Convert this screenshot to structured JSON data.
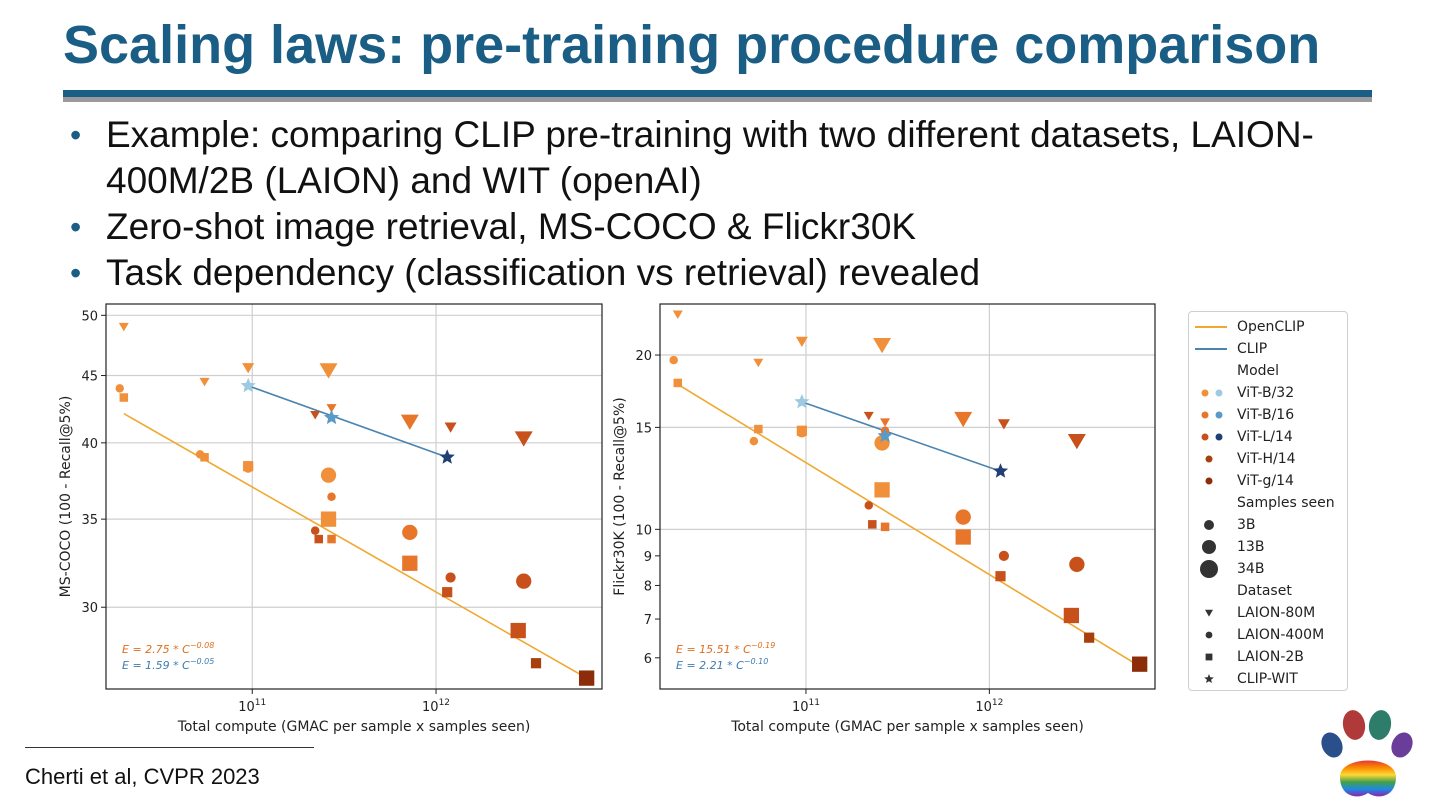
{
  "slide": {
    "title": "Scaling laws: pre-training procedure comparison",
    "bullets": [
      "Example: comparing CLIP pre-training with two different datasets, LAION-400M/2B (LAION) and WIT (openAI)",
      "Zero-shot image retrieval, MS-COCO & Flickr30K",
      "Task dependency (classification vs retrieval) revealed"
    ],
    "citation": "Cherti et al, CVPR 2023",
    "colors": {
      "title": "#1a5e85",
      "opencip_line": "#f0a830",
      "clip_line": "#4a84b0"
    }
  },
  "legend": {
    "items": [
      {
        "label": "OpenCLIP",
        "kind": "line",
        "color": "#f0a830"
      },
      {
        "label": "CLIP",
        "kind": "line",
        "color": "#4a84b0"
      },
      {
        "label": "Model",
        "kind": "header"
      },
      {
        "label": "ViT-B/32",
        "kind": "pair",
        "colors": [
          "#f0903a",
          "#9ecae1"
        ]
      },
      {
        "label": "ViT-B/16",
        "kind": "pair",
        "colors": [
          "#e8762a",
          "#5a9ac8"
        ]
      },
      {
        "label": "ViT-L/14",
        "kind": "pair",
        "colors": [
          "#c8501a",
          "#1f3f75"
        ]
      },
      {
        "label": "ViT-H/14",
        "kind": "dot",
        "color": "#a8400e"
      },
      {
        "label": "ViT-g/14",
        "kind": "dot",
        "color": "#8c2d0a"
      },
      {
        "label": "Samples seen",
        "kind": "header"
      },
      {
        "label": "3B",
        "kind": "size",
        "size": "small"
      },
      {
        "label": "13B",
        "kind": "size",
        "size": "medium"
      },
      {
        "label": "34B",
        "kind": "size",
        "size": "large"
      },
      {
        "label": "Dataset",
        "kind": "header"
      },
      {
        "label": "LAION-80M",
        "kind": "marker",
        "marker": "triangle-down"
      },
      {
        "label": "LAION-400M",
        "kind": "marker",
        "marker": "circle"
      },
      {
        "label": "LAION-2B",
        "kind": "marker",
        "marker": "square"
      },
      {
        "label": "CLIP-WIT",
        "kind": "marker",
        "marker": "star"
      }
    ]
  },
  "chart_data": [
    {
      "type": "scatter",
      "xlabel": "Total compute (GMAC per sample x samples seen)",
      "ylabel": "MS-COCO (100 - Recall@5%)",
      "xscale": "log",
      "yscale": "log",
      "xlim": [
        16000000000.0,
        8000000000000.0
      ],
      "ylim": [
        26.0,
        51.0
      ],
      "x_ticks": [
        {
          "v": 100000000000.0,
          "base": "10",
          "exp": "11"
        },
        {
          "v": 1000000000000.0,
          "base": "10",
          "exp": "12"
        }
      ],
      "y_ticks": [
        30,
        35,
        40,
        45,
        50
      ],
      "annotations": [
        {
          "prefix": "E = 2.75 * C",
          "exp": "−0.08",
          "color": "#e0701c"
        },
        {
          "prefix": "E = 1.59 * C",
          "exp": "−0.05",
          "color": "#3f7cb0"
        }
      ],
      "fit_lines": [
        {
          "name": "OpenCLIP",
          "color": "#f0a830",
          "x": [
            20000000000.0,
            6600000000000.0
          ],
          "y": [
            42.1,
            26.5
          ]
        },
        {
          "name": "CLIP",
          "color": "#4a84b0",
          "x": [
            95000000000.0,
            1150000000000.0
          ],
          "y": [
            44.2,
            39.0
          ]
        }
      ],
      "points": [
        {
          "x": 20000000000.0,
          "y": 49.0,
          "m": "tri",
          "s": 5,
          "c": "#f0903a"
        },
        {
          "x": 19000000000.0,
          "y": 44.0,
          "m": "circ",
          "s": 5,
          "c": "#f0903a"
        },
        {
          "x": 20000000000.0,
          "y": 43.3,
          "m": "sq",
          "s": 5,
          "c": "#f0903a"
        },
        {
          "x": 55000000000.0,
          "y": 44.5,
          "m": "tri",
          "s": 5,
          "c": "#f0903a"
        },
        {
          "x": 52000000000.0,
          "y": 39.2,
          "m": "circ",
          "s": 5,
          "c": "#f0903a"
        },
        {
          "x": 55000000000.0,
          "y": 39.0,
          "m": "sq",
          "s": 5,
          "c": "#f0903a"
        },
        {
          "x": 95000000000.0,
          "y": 45.6,
          "m": "tri",
          "s": 6,
          "c": "#f0903a"
        },
        {
          "x": 95000000000.0,
          "y": 38.3,
          "m": "circ",
          "s": 6,
          "c": "#f0903a"
        },
        {
          "x": 95000000000.0,
          "y": 38.4,
          "m": "sq",
          "s": 6,
          "c": "#f0903a"
        },
        {
          "x": 260000000000.0,
          "y": 45.4,
          "m": "tri",
          "s": 9,
          "c": "#f0903a"
        },
        {
          "x": 260000000000.0,
          "y": 37.8,
          "m": "circ",
          "s": 9,
          "c": "#f0903a"
        },
        {
          "x": 260000000000.0,
          "y": 35.0,
          "m": "sq",
          "s": 9,
          "c": "#f0903a"
        },
        {
          "x": 270000000000.0,
          "y": 42.5,
          "m": "tri",
          "s": 5,
          "c": "#e8762a"
        },
        {
          "x": 270000000000.0,
          "y": 36.4,
          "m": "circ",
          "s": 5,
          "c": "#e8762a"
        },
        {
          "x": 270000000000.0,
          "y": 33.8,
          "m": "sq",
          "s": 5,
          "c": "#e8762a"
        },
        {
          "x": 720000000000.0,
          "y": 41.5,
          "m": "tri",
          "s": 9,
          "c": "#e8762a"
        },
        {
          "x": 720000000000.0,
          "y": 34.2,
          "m": "circ",
          "s": 9,
          "c": "#e8762a"
        },
        {
          "x": 720000000000.0,
          "y": 32.4,
          "m": "sq",
          "s": 9,
          "c": "#e8762a"
        },
        {
          "x": 220000000000.0,
          "y": 42.0,
          "m": "tri",
          "s": 5,
          "c": "#c8501a"
        },
        {
          "x": 220000000000.0,
          "y": 34.3,
          "m": "circ",
          "s": 5,
          "c": "#c8501a"
        },
        {
          "x": 230000000000.0,
          "y": 33.8,
          "m": "sq",
          "s": 5,
          "c": "#c8501a"
        },
        {
          "x": 1200000000000.0,
          "y": 41.1,
          "m": "tri",
          "s": 6,
          "c": "#c8501a"
        },
        {
          "x": 1200000000000.0,
          "y": 31.6,
          "m": "circ",
          "s": 6,
          "c": "#c8501a"
        },
        {
          "x": 1150000000000.0,
          "y": 30.8,
          "m": "sq",
          "s": 6,
          "c": "#c8501a"
        },
        {
          "x": 3000000000000.0,
          "y": 40.3,
          "m": "tri",
          "s": 9,
          "c": "#c8501a"
        },
        {
          "x": 3000000000000.0,
          "y": 31.4,
          "m": "circ",
          "s": 9,
          "c": "#c8501a"
        },
        {
          "x": 2800000000000.0,
          "y": 28.8,
          "m": "sq",
          "s": 9,
          "c": "#c8501a"
        },
        {
          "x": 3500000000000.0,
          "y": 27.2,
          "m": "sq",
          "s": 6,
          "c": "#a8400e"
        },
        {
          "x": 6600000000000.0,
          "y": 26.5,
          "m": "sq",
          "s": 9,
          "c": "#8c2d0a"
        },
        {
          "x": 95000000000.0,
          "y": 44.2,
          "m": "star",
          "s": 8,
          "c": "#9ecae1"
        },
        {
          "x": 270000000000.0,
          "y": 41.8,
          "m": "star",
          "s": 8,
          "c": "#5a9ac8"
        },
        {
          "x": 1150000000000.0,
          "y": 39.0,
          "m": "star",
          "s": 8,
          "c": "#1f3f75"
        }
      ]
    },
    {
      "type": "scatter",
      "xlabel": "Total compute (GMAC per sample x samples seen)",
      "ylabel": "Flickr30K (100 - Recall@5%)",
      "xscale": "log",
      "yscale": "log",
      "xlim": [
        16000000000.0,
        8000000000000.0
      ],
      "ylim": [
        5.3,
        24.5
      ],
      "x_ticks": [
        {
          "v": 100000000000.0,
          "base": "10",
          "exp": "11"
        },
        {
          "v": 1000000000000.0,
          "base": "10",
          "exp": "12"
        }
      ],
      "y_ticks": [
        6,
        7,
        8,
        9,
        10,
        15,
        20
      ],
      "annotations": [
        {
          "prefix": "E = 15.51 * C",
          "exp": "−0.19",
          "color": "#e0701c"
        },
        {
          "prefix": "E = 2.21 * C",
          "exp": "−0.10",
          "color": "#3f7cb0"
        }
      ],
      "fit_lines": [
        {
          "name": "OpenCLIP",
          "color": "#f0a830",
          "x": [
            20000000000.0,
            6600000000000.0
          ],
          "y": [
            17.8,
            5.8
          ]
        },
        {
          "name": "CLIP",
          "color": "#4a84b0",
          "x": [
            95000000000.0,
            1150000000000.0
          ],
          "y": [
            16.6,
            12.6
          ]
        }
      ],
      "points": [
        {
          "x": 20000000000.0,
          "y": 23.5,
          "m": "tri",
          "s": 5,
          "c": "#f0903a"
        },
        {
          "x": 19000000000.0,
          "y": 19.6,
          "m": "circ",
          "s": 5,
          "c": "#f0903a"
        },
        {
          "x": 20000000000.0,
          "y": 17.9,
          "m": "sq",
          "s": 5,
          "c": "#f0903a"
        },
        {
          "x": 55000000000.0,
          "y": 19.4,
          "m": "tri",
          "s": 5,
          "c": "#f0903a"
        },
        {
          "x": 52000000000.0,
          "y": 14.2,
          "m": "circ",
          "s": 5,
          "c": "#f0903a"
        },
        {
          "x": 55000000000.0,
          "y": 14.9,
          "m": "sq",
          "s": 5,
          "c": "#f0903a"
        },
        {
          "x": 95000000000.0,
          "y": 21.1,
          "m": "tri",
          "s": 6,
          "c": "#f0903a"
        },
        {
          "x": 95000000000.0,
          "y": 14.7,
          "m": "circ",
          "s": 6,
          "c": "#f0903a"
        },
        {
          "x": 95000000000.0,
          "y": 14.8,
          "m": "sq",
          "s": 6,
          "c": "#f0903a"
        },
        {
          "x": 260000000000.0,
          "y": 20.8,
          "m": "tri",
          "s": 9,
          "c": "#f0903a"
        },
        {
          "x": 260000000000.0,
          "y": 14.1,
          "m": "circ",
          "s": 9,
          "c": "#f0903a"
        },
        {
          "x": 260000000000.0,
          "y": 11.7,
          "m": "sq",
          "s": 9,
          "c": "#f0903a"
        },
        {
          "x": 270000000000.0,
          "y": 15.3,
          "m": "tri",
          "s": 5,
          "c": "#e8762a"
        },
        {
          "x": 270000000000.0,
          "y": 14.8,
          "m": "circ",
          "s": 5,
          "c": "#e8762a"
        },
        {
          "x": 270000000000.0,
          "y": 10.1,
          "m": "sq",
          "s": 5,
          "c": "#e8762a"
        },
        {
          "x": 720000000000.0,
          "y": 15.5,
          "m": "tri",
          "s": 9,
          "c": "#e8762a"
        },
        {
          "x": 720000000000.0,
          "y": 10.5,
          "m": "circ",
          "s": 9,
          "c": "#e8762a"
        },
        {
          "x": 720000000000.0,
          "y": 9.7,
          "m": "sq",
          "s": 9,
          "c": "#e8762a"
        },
        {
          "x": 220000000000.0,
          "y": 15.7,
          "m": "tri",
          "s": 5,
          "c": "#c8501a"
        },
        {
          "x": 220000000000.0,
          "y": 11.0,
          "m": "circ",
          "s": 5,
          "c": "#c8501a"
        },
        {
          "x": 230000000000.0,
          "y": 10.2,
          "m": "sq",
          "s": 5,
          "c": "#c8501a"
        },
        {
          "x": 1200000000000.0,
          "y": 15.2,
          "m": "tri",
          "s": 6,
          "c": "#c8501a"
        },
        {
          "x": 1200000000000.0,
          "y": 9.0,
          "m": "circ",
          "s": 6,
          "c": "#c8501a"
        },
        {
          "x": 1150000000000.0,
          "y": 8.3,
          "m": "sq",
          "s": 6,
          "c": "#c8501a"
        },
        {
          "x": 3000000000000.0,
          "y": 14.2,
          "m": "tri",
          "s": 9,
          "c": "#c8501a"
        },
        {
          "x": 3000000000000.0,
          "y": 8.7,
          "m": "circ",
          "s": 9,
          "c": "#c8501a"
        },
        {
          "x": 2800000000000.0,
          "y": 7.1,
          "m": "sq",
          "s": 9,
          "c": "#c8501a"
        },
        {
          "x": 3500000000000.0,
          "y": 6.5,
          "m": "sq",
          "s": 6,
          "c": "#a8400e"
        },
        {
          "x": 6600000000000.0,
          "y": 5.85,
          "m": "sq",
          "s": 9,
          "c": "#8c2d0a"
        },
        {
          "x": 95000000000.0,
          "y": 16.6,
          "m": "star",
          "s": 8,
          "c": "#9ecae1"
        },
        {
          "x": 270000000000.0,
          "y": 14.5,
          "m": "star",
          "s": 8,
          "c": "#5a9ac8"
        },
        {
          "x": 1150000000000.0,
          "y": 12.6,
          "m": "star",
          "s": 8,
          "c": "#1f3f75"
        }
      ]
    }
  ]
}
